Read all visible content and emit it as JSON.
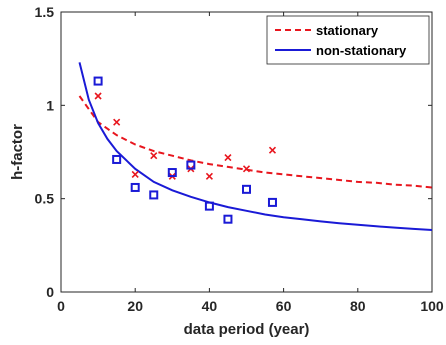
{
  "chart_data": {
    "type": "scatter",
    "title": "",
    "xlabel": "data period (year)",
    "ylabel": "h-factor",
    "xlim": [
      0,
      100
    ],
    "ylim": [
      0,
      1.5
    ],
    "xticks": [
      0,
      20,
      40,
      60,
      80,
      100
    ],
    "yticks": [
      0,
      0.5,
      1,
      1.5
    ],
    "xtick_labels": [
      "0",
      "20",
      "40",
      "60",
      "80",
      "100"
    ],
    "ytick_labels": [
      "0",
      "0.5",
      "1",
      "1.5"
    ],
    "grid": false,
    "legend_position": "top-right",
    "series": [
      {
        "name": "stationary",
        "kind": "dashed-line",
        "color": "#e8161e",
        "x": [
          5,
          10,
          15,
          20,
          25,
          30,
          35,
          40,
          45,
          50,
          55,
          60,
          65,
          70,
          75,
          80,
          85,
          90,
          95,
          100
        ],
        "y": [
          1.05,
          0.91,
          0.84,
          0.79,
          0.755,
          0.73,
          0.705,
          0.685,
          0.67,
          0.655,
          0.64,
          0.63,
          0.62,
          0.61,
          0.6,
          0.59,
          0.585,
          0.575,
          0.57,
          0.56
        ]
      },
      {
        "name": "non-stationary",
        "kind": "solid-line",
        "color": "#1a1ad6",
        "x": [
          5,
          7.5,
          10,
          12.5,
          15,
          20,
          25,
          30,
          35,
          40,
          45,
          50,
          55,
          60,
          65,
          70,
          75,
          80,
          85,
          90,
          95,
          100
        ],
        "y": [
          1.23,
          1.03,
          0.905,
          0.82,
          0.755,
          0.66,
          0.59,
          0.545,
          0.51,
          0.48,
          0.455,
          0.435,
          0.415,
          0.4,
          0.39,
          0.378,
          0.368,
          0.36,
          0.352,
          0.345,
          0.338,
          0.332
        ]
      },
      {
        "kind": "x-markers",
        "color": "#e8161e",
        "x": [
          10,
          15,
          20,
          25,
          30,
          35,
          40,
          45,
          50,
          57
        ],
        "y": [
          1.05,
          0.91,
          0.63,
          0.73,
          0.62,
          0.66,
          0.62,
          0.72,
          0.66,
          0.76
        ]
      },
      {
        "kind": "square-markers",
        "color": "#1a1ad6",
        "x": [
          10,
          15,
          20,
          25,
          30,
          35,
          40,
          45,
          50,
          57
        ],
        "y": [
          1.13,
          0.71,
          0.56,
          0.52,
          0.64,
          0.68,
          0.46,
          0.39,
          0.55,
          0.48
        ]
      }
    ]
  }
}
